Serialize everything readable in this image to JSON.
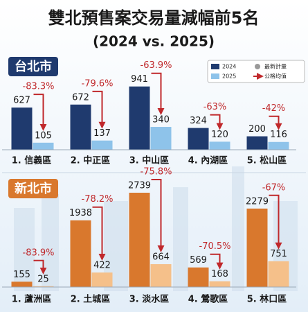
{
  "title": "雙北預售案交易量減幅前5名",
  "subtitle": "(2024 vs. 2025)",
  "chart_data": [
    {
      "type": "bar",
      "title": "台北市",
      "title_color": "#1f3a6e",
      "categories": [
        "1. 信義區",
        "2. 中正區",
        "3. 中山區",
        "4. 內湖區",
        "5. 松山區"
      ],
      "series": [
        {
          "name": "2024",
          "color": "#1f3a6e",
          "values": [
            627,
            672,
            941,
            324,
            200
          ]
        },
        {
          "name": "2025",
          "color": "#8ec3ea",
          "values": [
            105,
            137,
            340,
            120,
            116
          ]
        }
      ],
      "annotations": [
        "-83.3%",
        "-79.6%",
        "-63.9%",
        "-63%",
        "-42%"
      ],
      "legend": true,
      "legend_items": [
        "最新計量",
        "公格均值"
      ],
      "ylim": [
        0,
        1000
      ]
    },
    {
      "type": "bar",
      "title": "新北市",
      "title_color": "#d9782d",
      "categories": [
        "1. 蘆洲區",
        "2. 土城區",
        "3. 淡水區",
        "4. 鶯歌區",
        "5. 林口區"
      ],
      "series": [
        {
          "name": "2024",
          "color": "#d9782d",
          "values": [
            155,
            1938,
            2739,
            569,
            2279
          ]
        },
        {
          "name": "2025",
          "color": "#f5c08a",
          "values": [
            25,
            422,
            664,
            168,
            751
          ]
        }
      ],
      "annotations": [
        "-83.9%",
        "-78.2%",
        "-75.8%",
        "-70.5%",
        "-67%"
      ],
      "legend": false,
      "ylim": [
        0,
        3000
      ]
    }
  ]
}
